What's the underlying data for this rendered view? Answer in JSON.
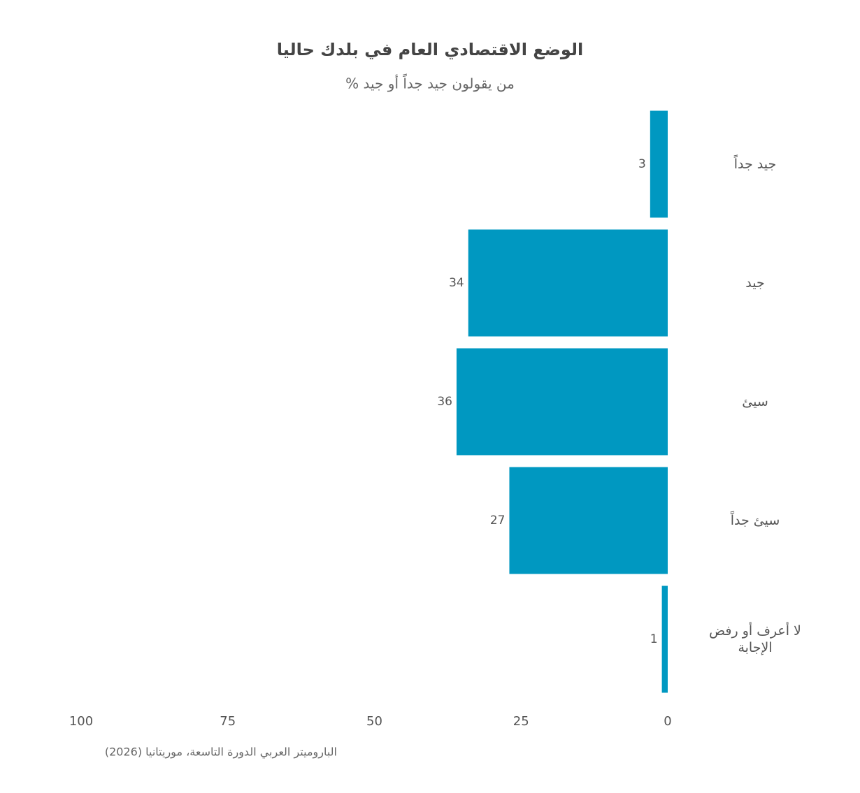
{
  "chart_data": {
    "type": "barh",
    "title": "الوضع الاقتصادي العام في بلدك حاليا",
    "subtitle": "% من يقولون جيد جداً أو جيد",
    "source": "الباروميتر العربي الدورة التاسعة، موريتانيا (2026)",
    "categories": [
      "جيد جداً",
      "جيد",
      "سيئ",
      "سيئ جداً",
      "لا أعرف أو رفض الإجابة"
    ],
    "values": [
      3,
      34,
      36,
      27,
      1
    ],
    "color": "#0098c1",
    "xlim": [
      100,
      0
    ],
    "xticks": [
      100,
      75,
      50,
      25,
      0
    ],
    "grid": false
  }
}
